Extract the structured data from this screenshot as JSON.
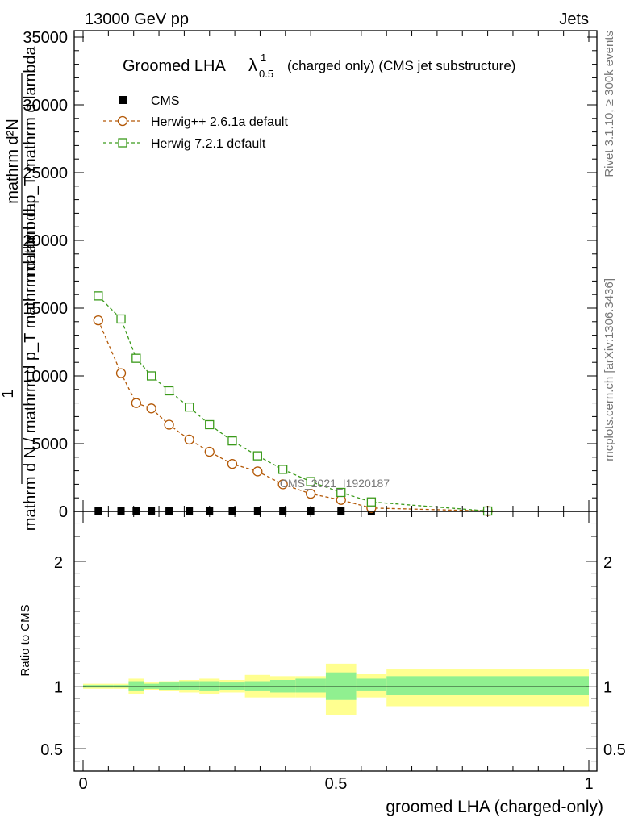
{
  "header": {
    "left": "13000 GeV pp",
    "right": "Jets"
  },
  "side_labels": {
    "rivet": "Rivet 3.1.10, ≥ 300k events",
    "mcplots": "mcplots.cern.ch [arXiv:1306.3436]"
  },
  "chart_data": [
    {
      "type": "line",
      "panel": "main",
      "title_main": "Groomed LHA",
      "title_symbol": "λ",
      "title_sup": "1",
      "title_sub": "0.5",
      "title_rest": "(charged only) (CMS jet substructure)",
      "watermark": "CMS_2021_I1920187",
      "xlim": [
        0,
        1
      ],
      "ylim": [
        0,
        35000
      ],
      "ylabel_lines": [
        "mathrm d²N",
        "mathrm d p_T mathrm d lambda",
        "1",
        "mathrm d N / mathrm d p_T mathrm d lambda"
      ],
      "yticks": [
        0,
        5000,
        10000,
        15000,
        20000,
        25000,
        30000,
        35000
      ],
      "ytick_labels": [
        "0",
        "5000",
        "10000",
        "15000",
        "20000",
        "25000",
        "30000",
        "35000"
      ],
      "series": [
        {
          "name": "CMS",
          "marker": "square-filled",
          "color": "#000000",
          "x": [
            0.03,
            0.075,
            0.105,
            0.135,
            0.17,
            0.21,
            0.25,
            0.295,
            0.345,
            0.395,
            0.45,
            0.51,
            0.57,
            0.8
          ],
          "values": [
            0,
            0,
            0,
            0,
            0,
            0,
            0,
            0,
            0,
            0,
            0,
            0,
            0,
            0
          ]
        },
        {
          "name": "Herwig++ 2.6.1a default",
          "marker": "circle-open",
          "color": "#b35806",
          "x": [
            0.03,
            0.075,
            0.105,
            0.135,
            0.17,
            0.21,
            0.25,
            0.295,
            0.345,
            0.395,
            0.45,
            0.51,
            0.57,
            0.8
          ],
          "values": [
            14100,
            10200,
            8000,
            7600,
            6400,
            5300,
            4400,
            3500,
            2950,
            2000,
            1300,
            850,
            250,
            30
          ]
        },
        {
          "name": "Herwig 7.2.1 default",
          "marker": "square-open",
          "color": "#3a9a1a",
          "x": [
            0.03,
            0.075,
            0.105,
            0.135,
            0.17,
            0.21,
            0.25,
            0.295,
            0.345,
            0.395,
            0.45,
            0.51,
            0.57,
            0.8
          ],
          "values": [
            15900,
            14200,
            11300,
            10000,
            8900,
            7700,
            6400,
            5200,
            4100,
            3100,
            2200,
            1400,
            700,
            30
          ]
        }
      ]
    },
    {
      "type": "area",
      "panel": "ratio",
      "ylabel": "Ratio to CMS",
      "xlabel": "groomed LHA (charged-only)",
      "xlim": [
        0,
        1
      ],
      "ylim": [
        0.32,
        2.4
      ],
      "yticks": [
        0.5,
        1,
        2
      ],
      "ytick_labels": [
        "0.5",
        "1",
        "2"
      ],
      "xticks": [
        0,
        0.5,
        1
      ],
      "xtick_labels": [
        "0",
        "0.5",
        "1"
      ],
      "bands": {
        "edges": [
          0,
          0.06,
          0.09,
          0.12,
          0.15,
          0.19,
          0.23,
          0.27,
          0.32,
          0.37,
          0.42,
          0.48,
          0.54,
          0.6,
          1.0
        ],
        "inner_lo": [
          0.99,
          0.99,
          0.96,
          0.98,
          0.97,
          0.97,
          0.96,
          0.97,
          0.96,
          0.95,
          0.95,
          0.89,
          0.96,
          0.93,
          0.92
        ],
        "inner_hi": [
          1.01,
          1.01,
          1.04,
          1.02,
          1.03,
          1.04,
          1.04,
          1.03,
          1.04,
          1.05,
          1.06,
          1.11,
          1.06,
          1.08,
          1.08
        ],
        "outer_lo": [
          0.98,
          0.98,
          0.94,
          0.97,
          0.96,
          0.95,
          0.94,
          0.95,
          0.91,
          0.91,
          0.91,
          0.77,
          0.91,
          0.84,
          0.84
        ],
        "outer_hi": [
          1.02,
          1.02,
          1.06,
          1.03,
          1.04,
          1.05,
          1.06,
          1.05,
          1.09,
          1.08,
          1.08,
          1.18,
          1.1,
          1.14,
          1.14
        ],
        "inner_color": "#90f090",
        "outer_color": "#ffff90"
      }
    }
  ]
}
